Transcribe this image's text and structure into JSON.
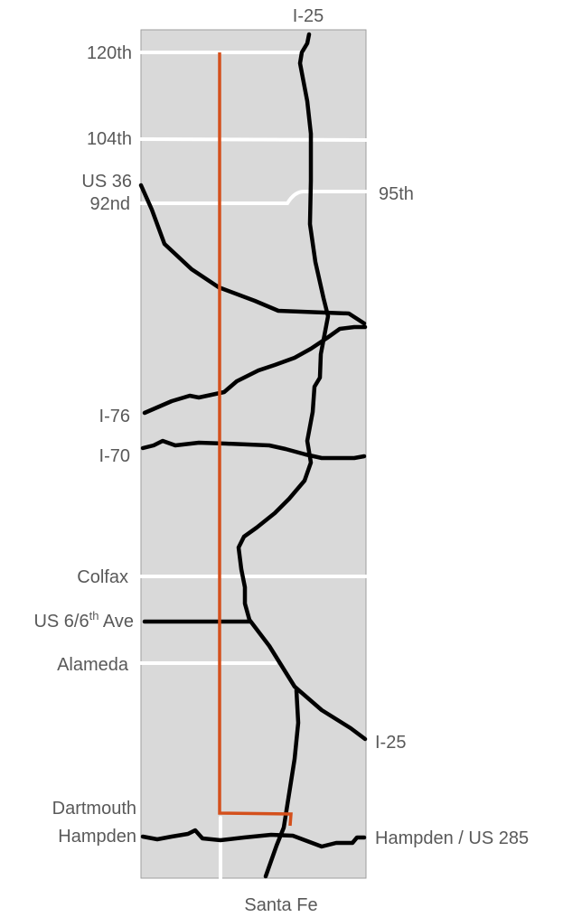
{
  "colors": {
    "panel": "#d9d9d9",
    "panel_border": "#9e9e9e",
    "highway": "#000000",
    "street": "#ffffff",
    "route": "#d4501c",
    "label": "#595959"
  },
  "labels": {
    "i25_top": "I-25",
    "s120th": "120th",
    "s104th": "104th",
    "s95th": "95th",
    "us36": "US 36",
    "s92nd": "92nd",
    "i76": "I-76",
    "i70": "I-70",
    "colfax": "Colfax",
    "us6_base": "US 6/6",
    "us6_sup": "th",
    "us6_tail": " Ave",
    "alameda": "Alameda",
    "i25_right": "I-25",
    "dartmouth": "Dartmouth",
    "hampden": "Hampden",
    "hampden_us285": "Hampden / US 285",
    "santa_fe": "Santa Fe"
  }
}
